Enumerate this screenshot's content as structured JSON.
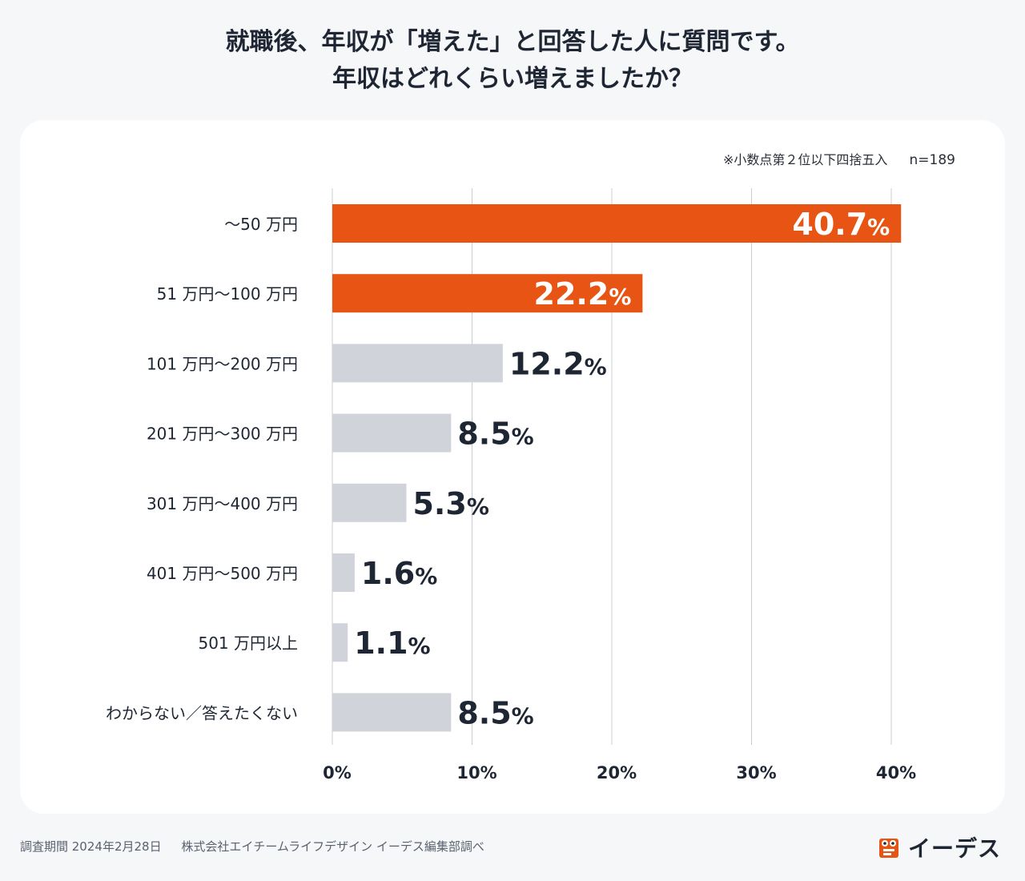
{
  "title": {
    "line1": "就職後、年収が「増えた」と回答した人に質問です。",
    "line2": "年収はどれくらい増えましたか？"
  },
  "note": {
    "rounding": "※小数点第２位以下四捨五入",
    "sample": "n=189"
  },
  "footer": {
    "period": "調査期間 2024年2月28日",
    "company": "株式会社エイチームライフデザイン イーデス編集部調べ"
  },
  "logo": {
    "text": "イーデス",
    "icon": "owl-logo-icon"
  },
  "colors": {
    "highlight": "#e85414",
    "muted": "#d0d4da",
    "label_dark": "#1e2633",
    "label_light": "#ffffff",
    "grid": "#c8ccd2"
  },
  "chart_data": {
    "type": "bar",
    "orientation": "horizontal",
    "title": "年収はどれくらい増えましたか？",
    "categories": [
      "～50 万円",
      "51 万円～100 万円",
      "101 万円～200 万円",
      "201 万円～300 万円",
      "301 万円～400 万円",
      "401 万円～500 万円",
      "501 万円以上",
      "わからない／答えたくない"
    ],
    "values": [
      40.7,
      22.2,
      12.2,
      8.5,
      5.3,
      1.6,
      1.1,
      8.5
    ],
    "value_labels": [
      "40.7",
      "22.2",
      "12.2",
      "8.5",
      "5.3",
      "1.6",
      "1.1",
      "8.5"
    ],
    "value_suffix": "%",
    "highlighted": [
      true,
      true,
      false,
      false,
      false,
      false,
      false,
      false
    ],
    "xlim": [
      0,
      40
    ],
    "xticks": [
      0,
      10,
      20,
      30,
      40
    ],
    "xtick_labels": [
      "0%",
      "10%",
      "20%",
      "30%",
      "40%"
    ],
    "grid": true,
    "xlabel": "",
    "ylabel": ""
  }
}
